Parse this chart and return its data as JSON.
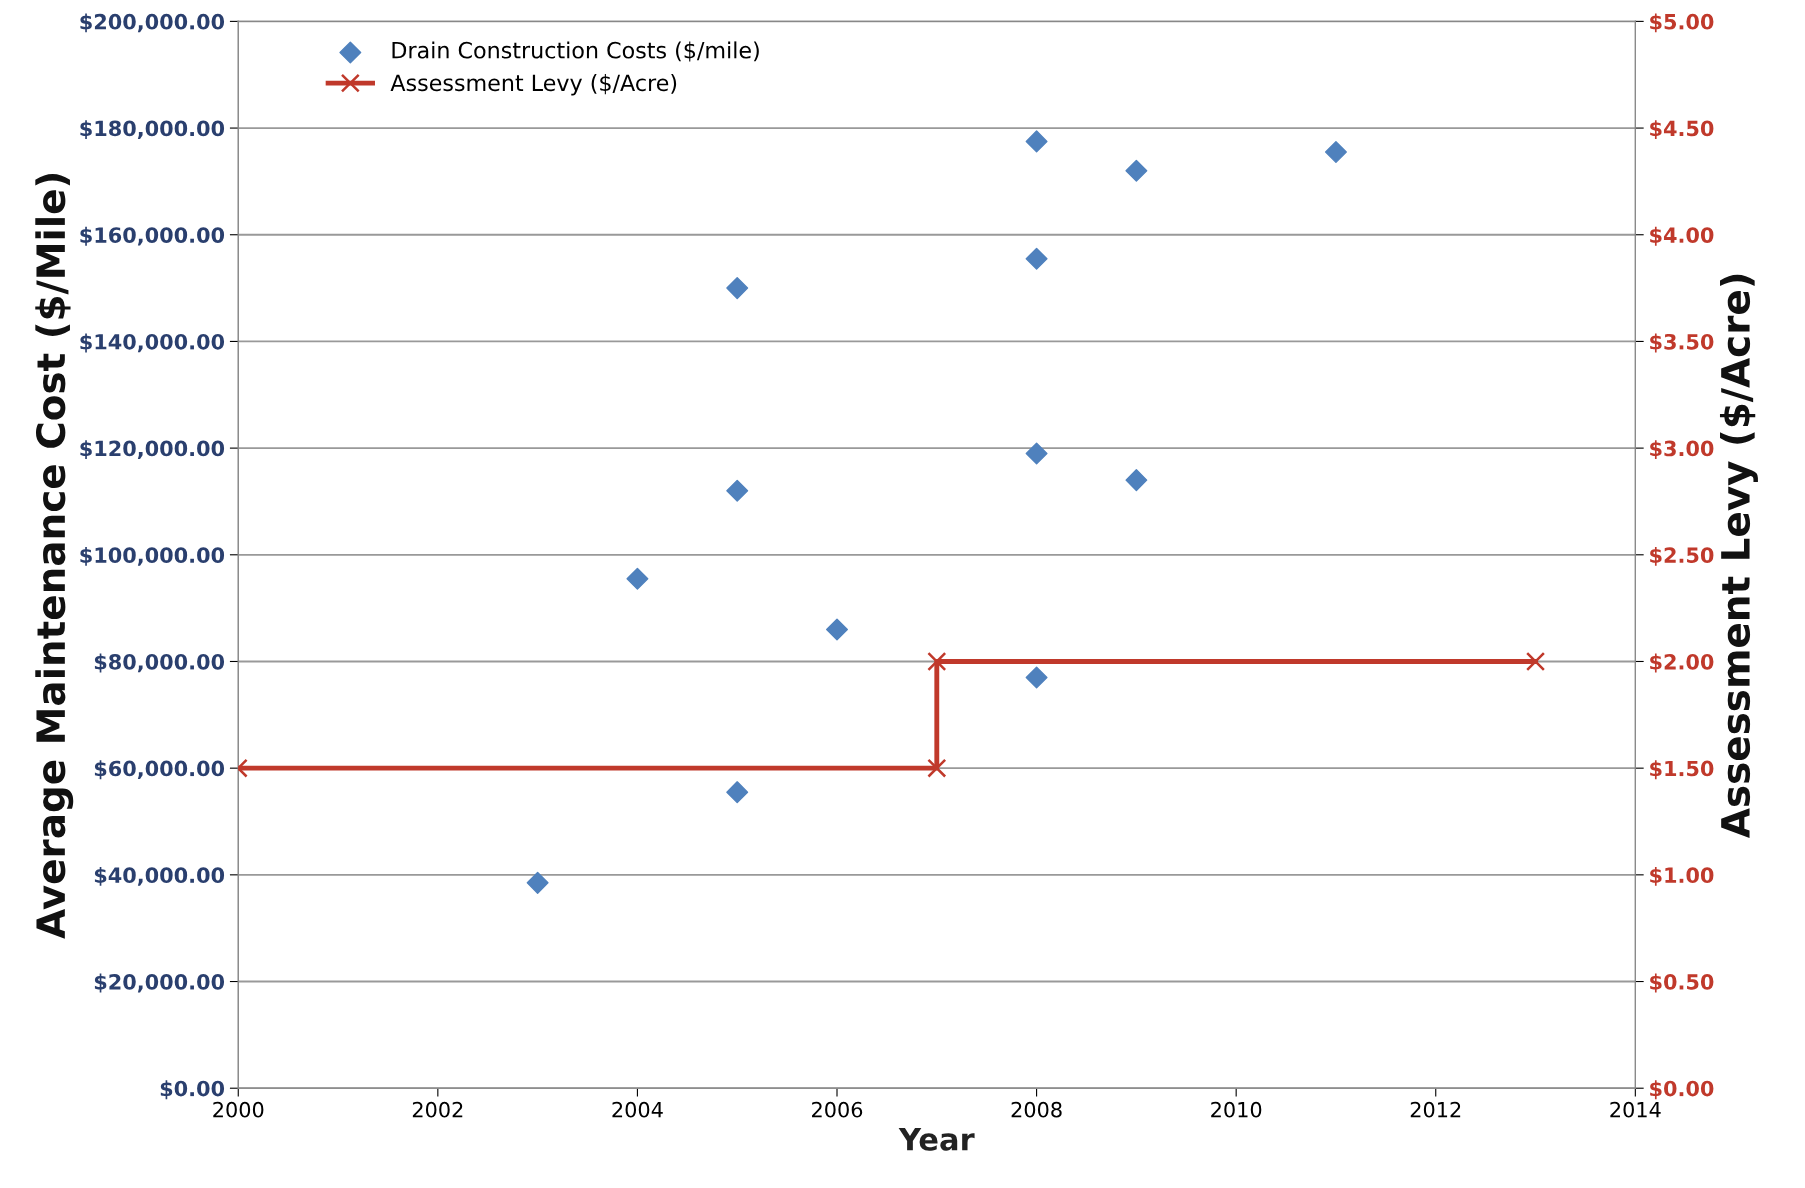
{
  "chart_data": {
    "type": "scatter",
    "xlabel": "Year",
    "ylabel": "Average Maintenance Cost ($/Mile)",
    "y2label": "Assessment Levy ($/Acre)",
    "series": [
      {
        "name": "Drain Construction Costs ($/mile)",
        "color": "#4f81bd",
        "marker": "diamond",
        "x": [
          2003,
          2004,
          2005,
          2005,
          2005,
          2006,
          2008,
          2008,
          2008,
          2008,
          2009,
          2009,
          2011
        ],
        "values": [
          38500,
          95500,
          150000,
          112000,
          55500,
          86000,
          177500,
          155500,
          119000,
          77000,
          172000,
          114000,
          175500
        ]
      },
      {
        "name": "Assessment Levy ($/Acre)",
        "type": "line",
        "axis": "y2",
        "color": "#c0392b",
        "marker": "cross",
        "line_style": "solid",
        "x": [
          2000,
          2007,
          2007,
          2013
        ],
        "values": [
          1.5,
          1.5,
          2.0,
          2.0
        ]
      }
    ],
    "xlim": [
      2000,
      2014
    ],
    "xticks": [
      2000,
      2002,
      2004,
      2006,
      2008,
      2010,
      2012,
      2014
    ],
    "ylim": [
      0,
      200000
    ],
    "yticks": [
      {
        "value": 0,
        "label": "$0.00"
      },
      {
        "value": 20000,
        "label": "$20,000.00"
      },
      {
        "value": 40000,
        "label": "$40,000.00"
      },
      {
        "value": 60000,
        "label": "$60,000.00"
      },
      {
        "value": 80000,
        "label": "$80,000.00"
      },
      {
        "value": 100000,
        "label": "$100,000.00"
      },
      {
        "value": 120000,
        "label": "$120,000.00"
      },
      {
        "value": 140000,
        "label": "$140,000.00"
      },
      {
        "value": 160000,
        "label": "$160,000.00"
      },
      {
        "value": 180000,
        "label": "$180,000.00"
      },
      {
        "value": 200000,
        "label": "$200,000.00"
      }
    ],
    "y2lim": [
      0,
      5
    ],
    "y2ticks": [
      {
        "value": 0,
        "label": "$0.00"
      },
      {
        "value": 0.5,
        "label": "$0.50"
      },
      {
        "value": 1,
        "label": "$1.00"
      },
      {
        "value": 1.5,
        "label": "$1.50"
      },
      {
        "value": 2,
        "label": "$2.00"
      },
      {
        "value": 2.5,
        "label": "$2.50"
      },
      {
        "value": 3,
        "label": "$3.00"
      },
      {
        "value": 3.5,
        "label": "$3.50"
      },
      {
        "value": 4,
        "label": "$4.00"
      },
      {
        "value": 4.5,
        "label": "$4.50"
      },
      {
        "value": 5,
        "label": "$5.00"
      }
    ],
    "grid": "y",
    "legend": "top left"
  }
}
